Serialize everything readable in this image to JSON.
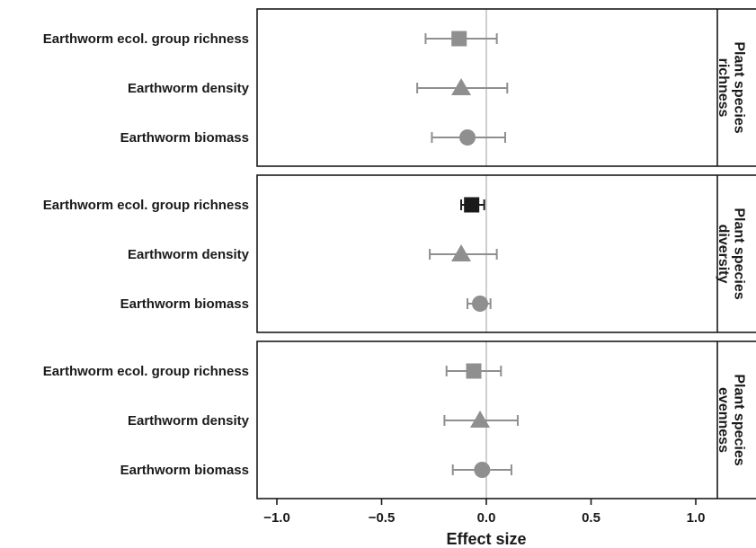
{
  "chart_data": {
    "type": "scatter",
    "subtype": "forest-plot",
    "xlabel": "Effect size",
    "xlim": [
      -1.1,
      1.1
    ],
    "xticks": [
      -1.0,
      -0.5,
      0.0,
      0.5,
      1.0
    ],
    "xtick_labels": [
      "−1.0",
      "−0.5",
      "0.0",
      "0.5",
      "1.0"
    ],
    "reference_line": 0.0,
    "grid": false,
    "colors": {
      "gray": "#8f8f8f",
      "black": "#1a1a1a",
      "refline": "#cfcfcf"
    },
    "panels": [
      {
        "strip_label": [
          "Plant species",
          "richness"
        ],
        "rows": [
          {
            "label": "Earthworm ecol. group richness",
            "marker": "square",
            "color": "gray",
            "estimate": -0.13,
            "lower": -0.29,
            "upper": 0.05
          },
          {
            "label": "Earthworm density",
            "marker": "triangle",
            "color": "gray",
            "estimate": -0.12,
            "lower": -0.33,
            "upper": 0.1
          },
          {
            "label": "Earthworm biomass",
            "marker": "circle",
            "color": "gray",
            "estimate": -0.09,
            "lower": -0.26,
            "upper": 0.09
          }
        ]
      },
      {
        "strip_label": [
          "Plant species",
          "diversity"
        ],
        "rows": [
          {
            "label": "Earthworm ecol. group richness",
            "marker": "square",
            "color": "black",
            "estimate": -0.07,
            "lower": -0.12,
            "upper": -0.01
          },
          {
            "label": "Earthworm density",
            "marker": "triangle",
            "color": "gray",
            "estimate": -0.12,
            "lower": -0.27,
            "upper": 0.05
          },
          {
            "label": "Earthworm biomass",
            "marker": "circle",
            "color": "gray",
            "estimate": -0.03,
            "lower": -0.09,
            "upper": 0.02
          }
        ]
      },
      {
        "strip_label": [
          "Plant species",
          "evenness"
        ],
        "rows": [
          {
            "label": "Earthworm ecol. group richness",
            "marker": "square",
            "color": "gray",
            "estimate": -0.06,
            "lower": -0.19,
            "upper": 0.07
          },
          {
            "label": "Earthworm density",
            "marker": "triangle",
            "color": "gray",
            "estimate": -0.03,
            "lower": -0.2,
            "upper": 0.15
          },
          {
            "label": "Earthworm biomass",
            "marker": "circle",
            "color": "gray",
            "estimate": -0.02,
            "lower": -0.16,
            "upper": 0.12
          }
        ]
      }
    ]
  }
}
